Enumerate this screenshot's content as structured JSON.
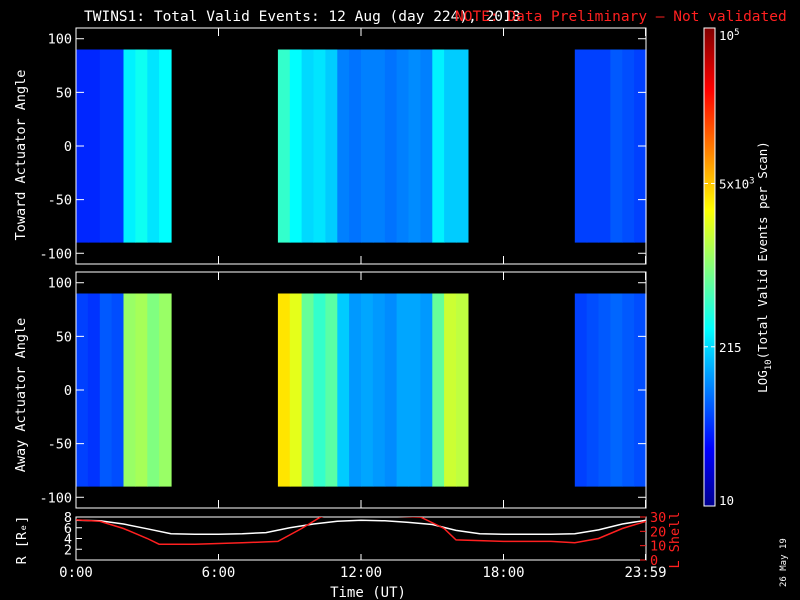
{
  "title": {
    "main": "TWINS1: Total Valid Events: 12 Aug (day 224), 2018",
    "note": "NOTE: Data Preliminary — Not validated",
    "note_color": "#ff2020"
  },
  "date_stamp": "26 May 19",
  "chart_data": [
    {
      "type": "heatmap",
      "panel": "toward",
      "ylabel": "Toward Actuator Angle",
      "ylim": [
        -110,
        110
      ],
      "yticks": [
        "100",
        "50",
        "0",
        "-50",
        "-100"
      ],
      "y_data_range": [
        -90,
        90
      ],
      "time_units": "hours UT",
      "x": [
        0.0,
        0.5,
        1.0,
        1.5,
        2.0,
        2.5,
        3.0,
        3.5,
        8.5,
        9.0,
        9.5,
        10.0,
        10.5,
        11.0,
        11.5,
        12.0,
        12.5,
        13.0,
        13.5,
        14.0,
        14.5,
        15.0,
        15.5,
        16.0,
        21.0,
        21.5,
        22.0,
        22.5,
        23.0,
        23.5
      ],
      "log10_events": [
        1.65,
        1.65,
        1.7,
        1.7,
        2.45,
        2.55,
        2.4,
        2.5,
        2.7,
        2.5,
        2.35,
        2.4,
        2.3,
        2.0,
        1.95,
        2.0,
        2.0,
        1.95,
        2.0,
        2.05,
        2.0,
        2.45,
        2.3,
        2.3,
        1.75,
        1.75,
        1.75,
        1.85,
        1.8,
        1.75
      ]
    },
    {
      "type": "heatmap",
      "panel": "away",
      "ylabel": "Away Actuator Angle",
      "ylim": [
        -110,
        110
      ],
      "yticks": [
        "100",
        "50",
        "0",
        "-50",
        "-100"
      ],
      "y_data_range": [
        -90,
        90
      ],
      "time_units": "hours UT",
      "x": [
        0.0,
        0.5,
        1.0,
        1.5,
        2.0,
        2.5,
        3.0,
        3.5,
        8.5,
        9.0,
        9.5,
        10.0,
        10.5,
        11.0,
        11.5,
        12.0,
        12.5,
        13.0,
        13.5,
        14.0,
        14.5,
        15.0,
        15.5,
        16.0,
        21.0,
        21.5,
        22.0,
        22.5,
        23.0,
        23.5
      ],
      "log10_events": [
        1.75,
        1.7,
        1.85,
        1.8,
        3.1,
        3.15,
        3.0,
        3.1,
        3.6,
        3.4,
        2.9,
        2.7,
        2.85,
        2.3,
        2.1,
        2.15,
        2.1,
        2.05,
        2.15,
        2.15,
        2.1,
        2.9,
        3.3,
        3.25,
        1.75,
        1.8,
        1.85,
        1.9,
        1.85,
        1.8
      ]
    },
    {
      "type": "line",
      "panel": "orbit",
      "ylabel_left": "R [Rₑ]",
      "ylabel_right": "L Shell",
      "yticks_left": [
        "8",
        "6",
        "4",
        "2"
      ],
      "yticks_right": [
        "30",
        "20",
        "10",
        "0"
      ],
      "ylim_left": [
        0,
        8
      ],
      "ylim_right": [
        0,
        30
      ],
      "xlabel": "Time (UT)",
      "xtick_labels": [
        "0:00",
        "6:00",
        "12:00",
        "18:00",
        "23:59"
      ],
      "xtick_values": [
        0,
        6,
        12,
        18,
        23.98
      ],
      "xlim": [
        0,
        24
      ],
      "series": [
        {
          "color": "#ffffff",
          "axis": "left",
          "x": [
            0,
            1,
            2,
            3,
            4,
            5,
            6,
            7,
            8,
            9,
            10,
            11,
            12,
            13,
            14,
            15,
            16,
            17,
            18,
            19,
            20,
            21,
            22,
            23,
            24
          ],
          "y": [
            7.4,
            7.3,
            6.7,
            5.8,
            4.9,
            4.8,
            4.8,
            4.9,
            5.1,
            6.0,
            6.7,
            7.2,
            7.4,
            7.3,
            7.0,
            6.6,
            5.5,
            4.9,
            4.8,
            4.8,
            4.8,
            4.9,
            5.6,
            6.7,
            7.4
          ]
        },
        {
          "color": "#ff2020",
          "axis": "right",
          "x": [
            0,
            1,
            2,
            3,
            3.5,
            5,
            7,
            8.5,
            9.5,
            10.3,
            10.8,
            14.5,
            15.5,
            16,
            18,
            20,
            21,
            22,
            23,
            24
          ],
          "y": [
            28,
            27,
            22,
            15,
            11,
            11,
            12,
            13,
            22,
            30,
            32,
            30,
            22,
            14,
            13,
            13,
            12,
            15,
            22,
            27
          ]
        }
      ]
    }
  ],
  "colorbar": {
    "label_text": "LOG",
    "label_sub": "10",
    "label_rest": "(Total Valid Events per Scan)",
    "scale": "log",
    "range": [
      10,
      100000
    ],
    "ticks": [
      {
        "value": 100000,
        "base": "10",
        "exp": "5"
      },
      {
        "value": 5000,
        "base": "5x10",
        "exp": "3"
      },
      {
        "value": 215,
        "base": "215",
        "exp": ""
      },
      {
        "value": 10,
        "base": "10",
        "exp": ""
      }
    ]
  }
}
